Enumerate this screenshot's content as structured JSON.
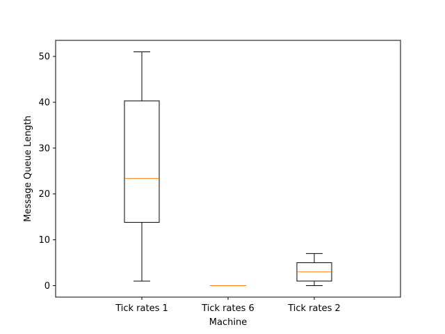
{
  "chart_data": {
    "type": "box",
    "xlabel": "Machine",
    "ylabel": "Message Queue Length",
    "ylim": [
      -2.5,
      53.5
    ],
    "yticks": [
      0,
      10,
      20,
      30,
      40,
      50
    ],
    "categories": [
      "Tick rates 1",
      "Tick rates 6",
      "Tick rates 2"
    ],
    "boxes": [
      {
        "category": "Tick rates 1",
        "whisker_low": 1,
        "q1": 13.8,
        "median": 23.4,
        "q3": 40.3,
        "whisker_high": 51
      },
      {
        "category": "Tick rates 6",
        "whisker_low": 0,
        "q1": 0,
        "median": 0,
        "q3": 0,
        "whisker_high": 0
      },
      {
        "category": "Tick rates 2",
        "whisker_low": 0,
        "q1": 1,
        "median": 3,
        "q3": 5,
        "whisker_high": 7
      }
    ],
    "colors": {
      "box": "#000000",
      "median": "#ff7f0e"
    },
    "grid": false,
    "legend": "none"
  }
}
